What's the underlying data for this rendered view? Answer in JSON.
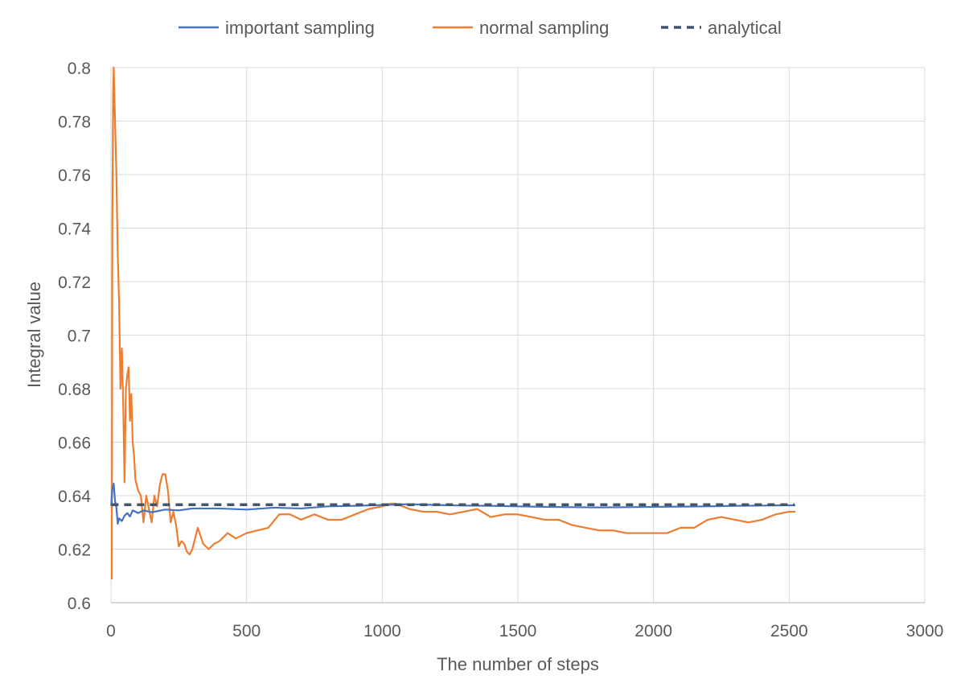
{
  "chart_data": {
    "type": "line",
    "title": "",
    "xlabel": "The number of steps",
    "ylabel": "Integral value",
    "xlim": [
      0,
      3000
    ],
    "ylim": [
      0.6,
      0.8
    ],
    "x_ticks": [
      0,
      500,
      1000,
      1500,
      2000,
      2500,
      3000
    ],
    "y_ticks": [
      0.6,
      0.62,
      0.64,
      0.66,
      0.68,
      0.7,
      0.72,
      0.74,
      0.76,
      0.78,
      0.8
    ],
    "x_tick_labels": [
      "0",
      "500",
      "1000",
      "1500",
      "2000",
      "2500",
      "3000"
    ],
    "y_tick_labels": [
      "0.6",
      "0.62",
      "0.64",
      "0.66",
      "0.68",
      "0.7",
      "0.72",
      "0.74",
      "0.76",
      "0.78",
      "0.8"
    ],
    "grid": true,
    "legend_position": "top",
    "series": [
      {
        "name": "important sampling",
        "color": "#4472C4",
        "style": "solid",
        "x": [
          1,
          5,
          10,
          15,
          20,
          25,
          30,
          40,
          50,
          60,
          70,
          80,
          100,
          120,
          150,
          200,
          250,
          300,
          400,
          500,
          600,
          700,
          800,
          900,
          1000,
          1100,
          1200,
          1300,
          1400,
          1500,
          1600,
          1700,
          1800,
          1900,
          2000,
          2100,
          2200,
          2300,
          2400,
          2500,
          2520
        ],
        "y": [
          0.6365,
          0.6425,
          0.6445,
          0.638,
          0.6355,
          0.6295,
          0.6315,
          0.6305,
          0.6325,
          0.6335,
          0.6322,
          0.6345,
          0.6335,
          0.6345,
          0.6338,
          0.6348,
          0.6345,
          0.6352,
          0.6352,
          0.6348,
          0.6355,
          0.6352,
          0.636,
          0.6362,
          0.6365,
          0.6368,
          0.6365,
          0.6363,
          0.6362,
          0.636,
          0.6358,
          0.6357,
          0.6356,
          0.6357,
          0.6358,
          0.6359,
          0.636,
          0.6362,
          0.6363,
          0.6364,
          0.6364
        ]
      },
      {
        "name": "normal sampling",
        "color": "#ED7D31",
        "style": "solid",
        "x": [
          3,
          5,
          8,
          10,
          15,
          20,
          25,
          30,
          35,
          40,
          45,
          50,
          55,
          60,
          65,
          70,
          75,
          80,
          85,
          90,
          100,
          110,
          120,
          130,
          140,
          150,
          160,
          170,
          180,
          190,
          200,
          210,
          220,
          230,
          240,
          250,
          260,
          270,
          280,
          290,
          300,
          320,
          340,
          360,
          380,
          400,
          430,
          460,
          500,
          540,
          580,
          620,
          660,
          700,
          750,
          800,
          850,
          900,
          950,
          1000,
          1030,
          1050,
          1100,
          1150,
          1200,
          1250,
          1300,
          1350,
          1400,
          1450,
          1500,
          1550,
          1600,
          1650,
          1700,
          1750,
          1800,
          1850,
          1900,
          1950,
          2000,
          2050,
          2100,
          2150,
          2200,
          2250,
          2300,
          2350,
          2400,
          2450,
          2500,
          2520
        ],
        "y": [
          0.609,
          0.74,
          0.79,
          0.8,
          0.78,
          0.76,
          0.73,
          0.712,
          0.68,
          0.695,
          0.675,
          0.645,
          0.68,
          0.685,
          0.688,
          0.668,
          0.678,
          0.66,
          0.655,
          0.646,
          0.642,
          0.64,
          0.63,
          0.64,
          0.635,
          0.63,
          0.64,
          0.636,
          0.644,
          0.648,
          0.648,
          0.642,
          0.63,
          0.634,
          0.629,
          0.621,
          0.623,
          0.622,
          0.619,
          0.618,
          0.62,
          0.628,
          0.622,
          0.62,
          0.622,
          0.623,
          0.626,
          0.624,
          0.626,
          0.627,
          0.628,
          0.633,
          0.633,
          0.631,
          0.633,
          0.631,
          0.631,
          0.633,
          0.635,
          0.636,
          0.637,
          0.637,
          0.635,
          0.634,
          0.634,
          0.633,
          0.634,
          0.635,
          0.632,
          0.633,
          0.633,
          0.632,
          0.631,
          0.631,
          0.629,
          0.628,
          0.627,
          0.627,
          0.626,
          0.626,
          0.626,
          0.626,
          0.628,
          0.628,
          0.631,
          0.632,
          0.631,
          0.63,
          0.631,
          0.633,
          0.634,
          0.634
        ]
      },
      {
        "name": "analytical",
        "color": "#44546A",
        "style": "dashed",
        "x": [
          1,
          2520
        ],
        "y": [
          0.6366,
          0.6366
        ]
      }
    ]
  }
}
